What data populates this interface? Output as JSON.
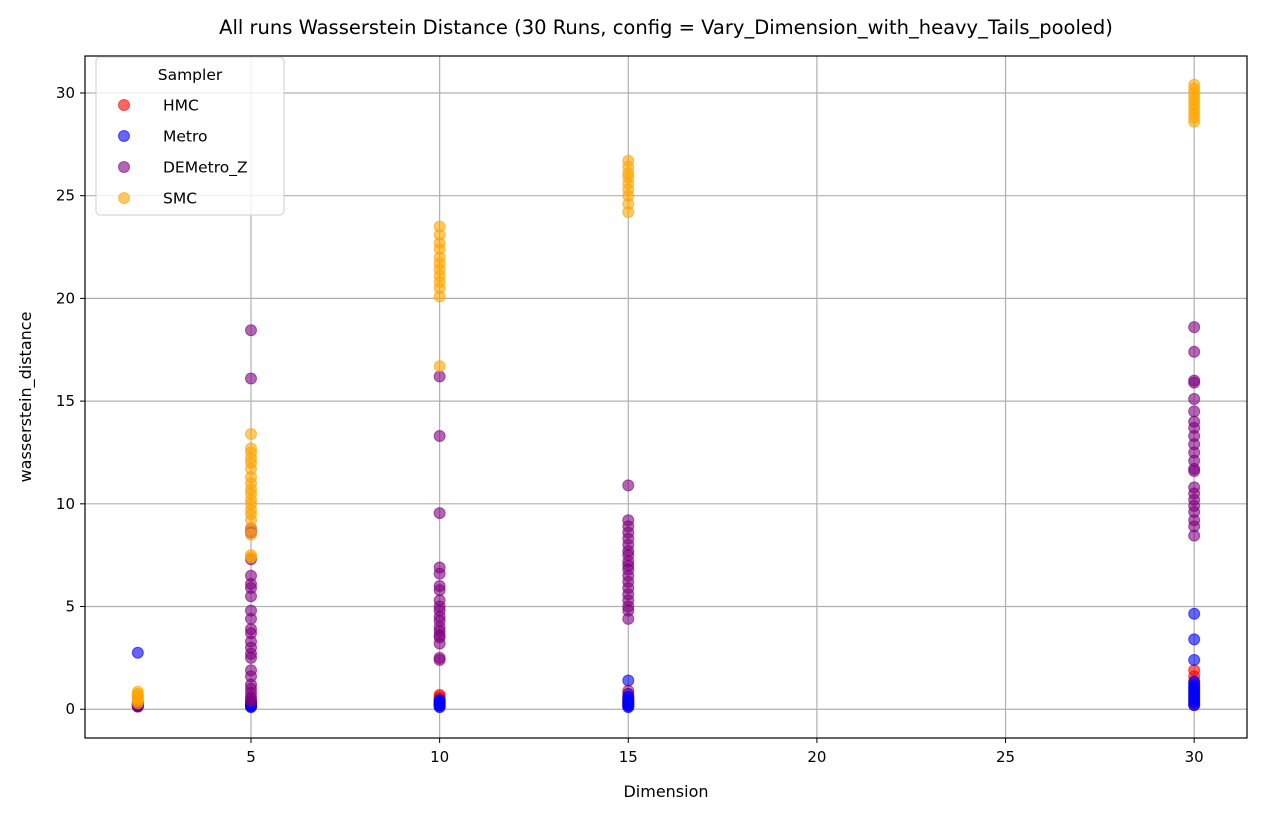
{
  "chart_data": {
    "type": "scatter",
    "title": "All runs Wasserstein Distance (30 Runs, config = Vary_Dimension_with_heavy_Tails_pooled)",
    "xlabel": "Dimension",
    "ylabel": "wasserstein_distance",
    "xlim": [
      0.6,
      31.4
    ],
    "ylim": [
      -1.4,
      31.8
    ],
    "x_ticks": [
      5,
      10,
      15,
      20,
      25,
      30
    ],
    "y_ticks": [
      0,
      5,
      10,
      15,
      20,
      25,
      30
    ],
    "grid": true,
    "legend": {
      "title": "Sampler",
      "placement": "top-left"
    },
    "series": [
      {
        "name": "HMC",
        "color": "#ff0000",
        "points": [
          [
            2,
            0.12
          ],
          [
            2,
            0.15
          ],
          [
            2,
            0.18
          ],
          [
            2,
            0.2
          ],
          [
            2,
            0.22
          ],
          [
            2,
            0.25
          ],
          [
            5,
            0.15
          ],
          [
            5,
            0.2
          ],
          [
            5,
            0.25
          ],
          [
            5,
            0.3
          ],
          [
            5,
            0.35
          ],
          [
            10,
            0.2
          ],
          [
            10,
            0.3
          ],
          [
            10,
            0.4
          ],
          [
            10,
            0.5
          ],
          [
            10,
            0.6
          ],
          [
            10,
            0.7
          ],
          [
            15,
            0.2
          ],
          [
            15,
            0.3
          ],
          [
            15,
            0.4
          ],
          [
            15,
            0.5
          ],
          [
            15,
            0.6
          ],
          [
            15,
            0.9
          ],
          [
            30,
            0.2
          ],
          [
            30,
            0.4
          ],
          [
            30,
            0.6
          ],
          [
            30,
            0.8
          ],
          [
            30,
            1.0
          ],
          [
            30,
            1.3
          ],
          [
            30,
            1.6
          ],
          [
            30,
            1.9
          ]
        ]
      },
      {
        "name": "Metro",
        "color": "#0000ff",
        "points": [
          [
            2,
            2.75
          ],
          [
            2,
            0.15
          ],
          [
            2,
            0.2
          ],
          [
            5,
            0.1
          ],
          [
            5,
            0.15
          ],
          [
            5,
            0.2
          ],
          [
            5,
            0.25
          ],
          [
            5,
            0.3
          ],
          [
            10,
            0.1
          ],
          [
            10,
            0.15
          ],
          [
            10,
            0.2
          ],
          [
            10,
            0.25
          ],
          [
            10,
            0.3
          ],
          [
            10,
            0.35
          ],
          [
            10,
            0.4
          ],
          [
            10,
            0.45
          ],
          [
            15,
            0.1
          ],
          [
            15,
            0.15
          ],
          [
            15,
            0.2
          ],
          [
            15,
            0.25
          ],
          [
            15,
            0.3
          ],
          [
            15,
            0.35
          ],
          [
            15,
            0.4
          ],
          [
            15,
            0.5
          ],
          [
            15,
            0.6
          ],
          [
            15,
            0.75
          ],
          [
            15,
            1.4
          ],
          [
            30,
            0.2
          ],
          [
            30,
            0.3
          ],
          [
            30,
            0.4
          ],
          [
            30,
            0.5
          ],
          [
            30,
            0.6
          ],
          [
            30,
            0.7
          ],
          [
            30,
            0.8
          ],
          [
            30,
            0.9
          ],
          [
            30,
            1.0
          ],
          [
            30,
            1.1
          ],
          [
            30,
            1.2
          ],
          [
            30,
            1.35
          ],
          [
            30,
            2.4
          ],
          [
            30,
            3.4
          ],
          [
            30,
            4.65
          ]
        ]
      },
      {
        "name": "DEMetro_Z",
        "color": "#800080",
        "points": [
          [
            2,
            0.2
          ],
          [
            2,
            0.25
          ],
          [
            2,
            0.3
          ],
          [
            2,
            0.35
          ],
          [
            5,
            18.45
          ],
          [
            5,
            16.1
          ],
          [
            5,
            8.8
          ],
          [
            5,
            8.6
          ],
          [
            5,
            7.3
          ],
          [
            5,
            6.5
          ],
          [
            5,
            6.1
          ],
          [
            5,
            5.9
          ],
          [
            5,
            5.5
          ],
          [
            5,
            4.8
          ],
          [
            5,
            4.4
          ],
          [
            5,
            3.9
          ],
          [
            5,
            3.7
          ],
          [
            5,
            3.3
          ],
          [
            5,
            3.0
          ],
          [
            5,
            2.7
          ],
          [
            5,
            2.5
          ],
          [
            5,
            1.9
          ],
          [
            5,
            1.6
          ],
          [
            5,
            1.2
          ],
          [
            5,
            1.0
          ],
          [
            5,
            0.8
          ],
          [
            5,
            0.6
          ],
          [
            5,
            0.5
          ],
          [
            5,
            0.4
          ],
          [
            10,
            16.2
          ],
          [
            10,
            13.3
          ],
          [
            10,
            9.55
          ],
          [
            10,
            6.9
          ],
          [
            10,
            6.6
          ],
          [
            10,
            6.0
          ],
          [
            10,
            5.8
          ],
          [
            10,
            5.3
          ],
          [
            10,
            5.0
          ],
          [
            10,
            4.8
          ],
          [
            10,
            4.5
          ],
          [
            10,
            4.3
          ],
          [
            10,
            4.0
          ],
          [
            10,
            3.8
          ],
          [
            10,
            3.6
          ],
          [
            10,
            3.5
          ],
          [
            10,
            3.2
          ],
          [
            10,
            2.5
          ],
          [
            10,
            2.4
          ],
          [
            15,
            10.9
          ],
          [
            15,
            9.2
          ],
          [
            15,
            8.9
          ],
          [
            15,
            8.6
          ],
          [
            15,
            8.3
          ],
          [
            15,
            8.0
          ],
          [
            15,
            7.7
          ],
          [
            15,
            7.5
          ],
          [
            15,
            7.2
          ],
          [
            15,
            7.0
          ],
          [
            15,
            6.8
          ],
          [
            15,
            6.5
          ],
          [
            15,
            6.2
          ],
          [
            15,
            5.9
          ],
          [
            15,
            5.6
          ],
          [
            15,
            5.3
          ],
          [
            15,
            5.0
          ],
          [
            15,
            4.8
          ],
          [
            15,
            4.4
          ],
          [
            30,
            18.6
          ],
          [
            30,
            17.4
          ],
          [
            30,
            16.0
          ],
          [
            30,
            15.9
          ],
          [
            30,
            15.1
          ],
          [
            30,
            14.5
          ],
          [
            30,
            14.0
          ],
          [
            30,
            13.7
          ],
          [
            30,
            13.3
          ],
          [
            30,
            12.9
          ],
          [
            30,
            12.5
          ],
          [
            30,
            12.1
          ],
          [
            30,
            11.7
          ],
          [
            30,
            11.6
          ],
          [
            30,
            10.8
          ],
          [
            30,
            10.5
          ],
          [
            30,
            10.2
          ],
          [
            30,
            9.9
          ],
          [
            30,
            9.6
          ],
          [
            30,
            9.2
          ],
          [
            30,
            8.9
          ],
          [
            30,
            8.45
          ]
        ]
      },
      {
        "name": "SMC",
        "color": "#ffa500",
        "points": [
          [
            2,
            0.3
          ],
          [
            2,
            0.4
          ],
          [
            2,
            0.5
          ],
          [
            2,
            0.55
          ],
          [
            2,
            0.6
          ],
          [
            2,
            0.7
          ],
          [
            2,
            0.75
          ],
          [
            2,
            0.85
          ],
          [
            5,
            13.4
          ],
          [
            5,
            12.7
          ],
          [
            5,
            12.5
          ],
          [
            5,
            12.2
          ],
          [
            5,
            12.0
          ],
          [
            5,
            11.7
          ],
          [
            5,
            11.3
          ],
          [
            5,
            11.0
          ],
          [
            5,
            10.7
          ],
          [
            5,
            10.5
          ],
          [
            5,
            10.2
          ],
          [
            5,
            10.0
          ],
          [
            5,
            9.7
          ],
          [
            5,
            9.5
          ],
          [
            5,
            9.2
          ],
          [
            5,
            8.8
          ],
          [
            5,
            8.5
          ],
          [
            5,
            7.5
          ],
          [
            5,
            7.4
          ],
          [
            10,
            23.5
          ],
          [
            10,
            23.1
          ],
          [
            10,
            22.7
          ],
          [
            10,
            22.4
          ],
          [
            10,
            22.0
          ],
          [
            10,
            21.7
          ],
          [
            10,
            21.4
          ],
          [
            10,
            21.1
          ],
          [
            10,
            20.8
          ],
          [
            10,
            20.5
          ],
          [
            10,
            20.1
          ],
          [
            10,
            16.7
          ],
          [
            15,
            26.7
          ],
          [
            15,
            26.4
          ],
          [
            15,
            26.1
          ],
          [
            15,
            25.9
          ],
          [
            15,
            25.6
          ],
          [
            15,
            25.3
          ],
          [
            15,
            25.0
          ],
          [
            15,
            24.6
          ],
          [
            15,
            24.2
          ],
          [
            30,
            30.4
          ],
          [
            30,
            30.2
          ],
          [
            30,
            30.0
          ],
          [
            30,
            29.8
          ],
          [
            30,
            29.6
          ],
          [
            30,
            29.4
          ],
          [
            30,
            29.2
          ],
          [
            30,
            29.0
          ],
          [
            30,
            28.8
          ],
          [
            30,
            28.6
          ]
        ]
      }
    ]
  }
}
